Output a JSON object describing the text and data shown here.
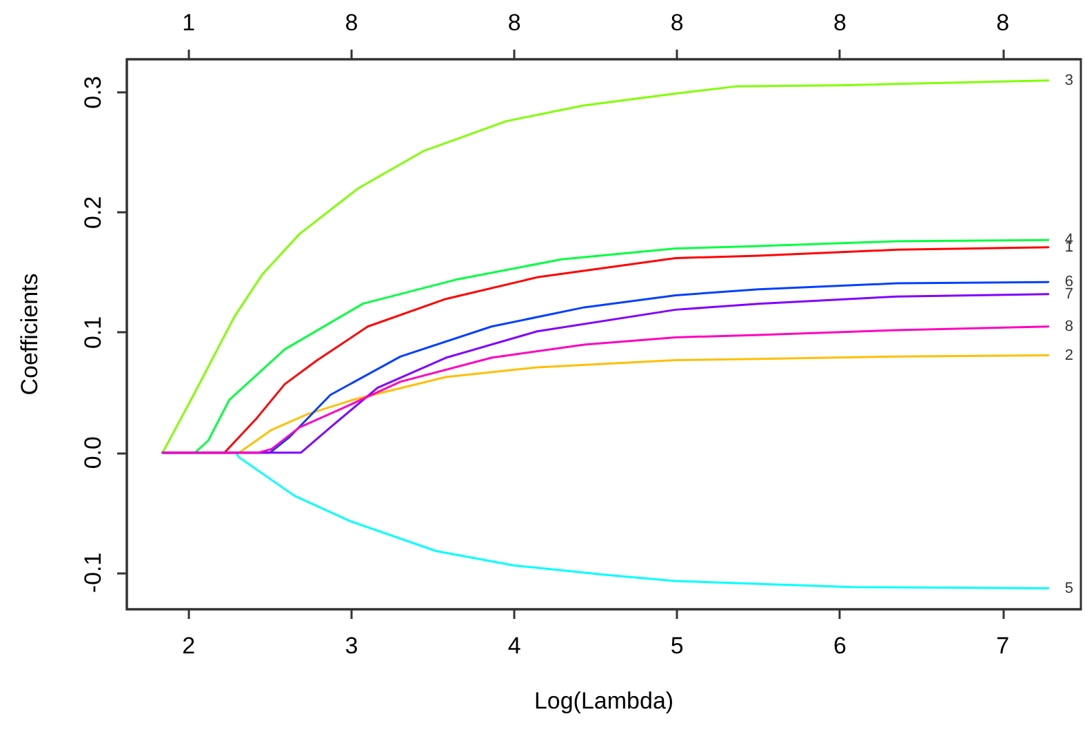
{
  "chart_data": {
    "type": "line",
    "xlabel": "Log(Lambda)",
    "ylabel": "Coefficients",
    "xlim": [
      1.62,
      7.48
    ],
    "xticks": [
      2,
      3,
      4,
      5,
      6,
      7
    ],
    "annotations": [
      "1",
      "8",
      "8",
      "8",
      "8",
      "8"
    ],
    "ylim": [
      -0.1305,
      0.3276
    ],
    "yticks": [
      -0.1,
      {
        "value": 0,
        "label": "0.0"
      },
      0.1,
      0.2,
      0.3
    ],
    "grid": false,
    "legend": false,
    "marker": "none",
    "line_style": "solid",
    "series": [
      {
        "name": "1",
        "color": "#ff0000",
        "x": [
          1.84,
          2.22,
          2.42,
          2.59,
          2.79,
          3.1,
          3.58,
          4.14,
          4.99,
          5.5,
          6.35,
          7.28
        ],
        "values": [
          0,
          0,
          0.029,
          0.057,
          0.077,
          0.105,
          0.128,
          0.146,
          0.162,
          0.164,
          0.169,
          0.171
        ]
      },
      {
        "name": "2",
        "color": "#ffbf00",
        "x": [
          1.84,
          2.31,
          2.51,
          2.73,
          3.01,
          3.58,
          4.14,
          4.99,
          5.5,
          6.35,
          7.28
        ],
        "values": [
          0,
          0,
          0.019,
          0.032,
          0.044,
          0.063,
          0.071,
          0.077,
          0.078,
          0.08,
          0.081
        ]
      },
      {
        "name": "3",
        "color": "#80ff00",
        "x": [
          1.84,
          2.03,
          2.28,
          2.45,
          2.68,
          3.04,
          3.44,
          3.95,
          4.42,
          4.99,
          5.36,
          6.01,
          7.28
        ],
        "values": [
          0,
          0.048,
          0.113,
          0.148,
          0.182,
          0.22,
          0.251,
          0.276,
          0.289,
          0.299,
          0.305,
          0.306,
          0.31
        ]
      },
      {
        "name": "4",
        "color": "#00ff40",
        "x": [
          1.84,
          2.04,
          2.12,
          2.25,
          2.59,
          3.07,
          3.64,
          4.29,
          4.99,
          5.5,
          6.35,
          7.28
        ],
        "values": [
          0,
          0,
          0.01,
          0.044,
          0.086,
          0.124,
          0.144,
          0.161,
          0.17,
          0.172,
          0.176,
          0.177
        ]
      },
      {
        "name": "5",
        "color": "#00ffff",
        "x": [
          1.84,
          2.29,
          2.31,
          2.65,
          2.99,
          3.52,
          4.0,
          4.57,
          4.99,
          6.07,
          7.28
        ],
        "values": [
          0,
          0,
          -0.004,
          -0.036,
          -0.057,
          -0.082,
          -0.094,
          -0.102,
          -0.107,
          -0.112,
          -0.113
        ]
      },
      {
        "name": "6",
        "color": "#0040ff",
        "x": [
          1.84,
          2.5,
          2.62,
          2.87,
          3.3,
          3.86,
          4.43,
          4.99,
          5.5,
          6.35,
          7.28
        ],
        "values": [
          0,
          0,
          0.013,
          0.048,
          0.08,
          0.105,
          0.121,
          0.131,
          0.136,
          0.141,
          0.142
        ]
      },
      {
        "name": "7",
        "color": "#8000ff",
        "x": [
          1.84,
          2.69,
          2.87,
          3.16,
          3.58,
          4.14,
          4.99,
          5.5,
          6.35,
          7.28
        ],
        "values": [
          0,
          0,
          0.021,
          0.054,
          0.079,
          0.101,
          0.119,
          0.124,
          0.13,
          0.132
        ]
      },
      {
        "name": "8",
        "color": "#ff00bf",
        "x": [
          1.84,
          2.43,
          2.51,
          2.68,
          2.93,
          3.3,
          3.86,
          4.43,
          4.99,
          5.5,
          6.35,
          7.28
        ],
        "values": [
          0,
          0,
          0.003,
          0.021,
          0.036,
          0.059,
          0.079,
          0.09,
          0.096,
          0.098,
          0.102,
          0.105
        ]
      }
    ]
  }
}
